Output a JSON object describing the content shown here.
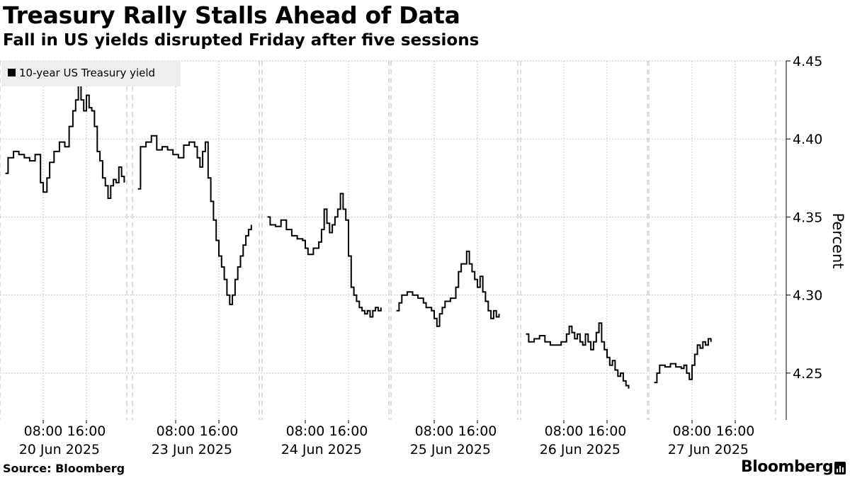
{
  "header": {
    "title": "Treasury Rally Stalls Ahead of Data",
    "subtitle": "Fall in US yields disrupted Friday after five sessions"
  },
  "footer": {
    "source": "Source: Bloomberg",
    "brand": "Bloomberg"
  },
  "colors": {
    "line": "#000000",
    "grid": "#c8c8c8",
    "legend_bg": "#eeeeee"
  },
  "chart_data": {
    "type": "line",
    "title": "Treasury Rally Stalls Ahead of Data",
    "subtitle": "Fall in US yields disrupted Friday after five sessions",
    "ylabel": "Percent",
    "ylim": [
      4.22,
      4.45
    ],
    "yticks": [
      4.25,
      4.3,
      4.35,
      4.4,
      4.45
    ],
    "ytick_labels": [
      "4.25",
      "4.30",
      "4.35",
      "4.40",
      "4.45"
    ],
    "grid": true,
    "legend_position": "top-left",
    "x_hours_per_day": [
      0,
      24
    ],
    "days": [
      {
        "date_label": "20 Jun 2025",
        "time_labels": [
          "08:00",
          "16:00"
        ]
      },
      {
        "date_label": "23 Jun 2025",
        "time_labels": [
          "08:00",
          "16:00"
        ]
      },
      {
        "date_label": "24 Jun 2025",
        "time_labels": [
          "08:00",
          "16:00"
        ]
      },
      {
        "date_label": "25 Jun 2025",
        "time_labels": [
          "08:00",
          "16:00"
        ]
      },
      {
        "date_label": "26 Jun 2025",
        "time_labels": [
          "08:00",
          "16:00"
        ]
      },
      {
        "date_label": "27 Jun 2025",
        "time_labels": [
          "08:00",
          "16:00"
        ]
      }
    ],
    "series": [
      {
        "name": "10-year US Treasury yield",
        "segments": [
          {
            "day": 0,
            "points": [
              [
                1.0,
                4.378
              ],
              [
                1.5,
                4.388
              ],
              [
                2.5,
                4.392
              ],
              [
                3.5,
                4.39
              ],
              [
                4.5,
                4.388
              ],
              [
                5.5,
                4.386
              ],
              [
                6.5,
                4.39
              ],
              [
                7.5,
                4.372
              ],
              [
                8.0,
                4.366
              ],
              [
                8.7,
                4.375
              ],
              [
                9.2,
                4.385
              ],
              [
                10.0,
                4.392
              ],
              [
                11.0,
                4.398
              ],
              [
                12.0,
                4.395
              ],
              [
                12.8,
                4.408
              ],
              [
                13.5,
                4.418
              ],
              [
                14.0,
                4.425
              ],
              [
                14.5,
                4.436
              ],
              [
                15.0,
                4.425
              ],
              [
                15.5,
                4.418
              ],
              [
                16.0,
                4.428
              ],
              [
                16.5,
                4.42
              ],
              [
                17.0,
                4.418
              ],
              [
                17.5,
                4.408
              ],
              [
                18.0,
                4.392
              ],
              [
                18.5,
                4.386
              ],
              [
                19.0,
                4.375
              ],
              [
                19.5,
                4.37
              ],
              [
                20.0,
                4.362
              ],
              [
                20.5,
                4.37
              ],
              [
                21.0,
                4.374
              ],
              [
                21.5,
                4.372
              ],
              [
                22.0,
                4.382
              ],
              [
                22.5,
                4.376
              ],
              [
                23.0,
                4.372
              ]
            ]
          },
          {
            "day": 1,
            "points": [
              [
                1.0,
                4.368
              ],
              [
                1.5,
                4.395
              ],
              [
                2.5,
                4.398
              ],
              [
                3.5,
                4.402
              ],
              [
                4.5,
                4.393
              ],
              [
                5.5,
                4.395
              ],
              [
                6.5,
                4.393
              ],
              [
                7.5,
                4.39
              ],
              [
                8.5,
                4.388
              ],
              [
                9.5,
                4.396
              ],
              [
                10.5,
                4.398
              ],
              [
                11.5,
                4.395
              ],
              [
                12.0,
                4.388
              ],
              [
                12.5,
                4.382
              ],
              [
                13.0,
                4.392
              ],
              [
                13.5,
                4.398
              ],
              [
                14.0,
                4.375
              ],
              [
                14.5,
                4.36
              ],
              [
                15.0,
                4.348
              ],
              [
                15.5,
                4.335
              ],
              [
                16.0,
                4.325
              ],
              [
                16.5,
                4.318
              ],
              [
                17.0,
                4.31
              ],
              [
                17.5,
                4.3
              ],
              [
                18.0,
                4.294
              ],
              [
                18.5,
                4.3
              ],
              [
                19.0,
                4.31
              ],
              [
                19.5,
                4.318
              ],
              [
                20.0,
                4.325
              ],
              [
                20.5,
                4.332
              ],
              [
                21.0,
                4.338
              ],
              [
                21.5,
                4.342
              ],
              [
                22.0,
                4.345
              ]
            ]
          },
          {
            "day": 2,
            "points": [
              [
                1.0,
                4.35
              ],
              [
                1.5,
                4.345
              ],
              [
                2.5,
                4.344
              ],
              [
                3.5,
                4.348
              ],
              [
                4.5,
                4.342
              ],
              [
                5.5,
                4.338
              ],
              [
                6.5,
                4.336
              ],
              [
                7.5,
                4.335
              ],
              [
                8.0,
                4.33
              ],
              [
                8.5,
                4.326
              ],
              [
                9.5,
                4.33
              ],
              [
                10.5,
                4.334
              ],
              [
                11.0,
                4.342
              ],
              [
                11.5,
                4.355
              ],
              [
                12.0,
                4.346
              ],
              [
                12.5,
                4.34
              ],
              [
                13.0,
                4.345
              ],
              [
                13.5,
                4.35
              ],
              [
                14.0,
                4.355
              ],
              [
                14.5,
                4.365
              ],
              [
                15.0,
                4.355
              ],
              [
                15.5,
                4.348
              ],
              [
                16.0,
                4.325
              ],
              [
                16.5,
                4.305
              ],
              [
                17.0,
                4.3
              ],
              [
                17.5,
                4.296
              ],
              [
                18.0,
                4.292
              ],
              [
                18.5,
                4.29
              ],
              [
                19.0,
                4.288
              ],
              [
                19.5,
                4.29
              ],
              [
                20.0,
                4.286
              ],
              [
                20.5,
                4.29
              ],
              [
                21.0,
                4.292
              ],
              [
                21.5,
                4.29
              ],
              [
                22.0,
                4.292
              ]
            ]
          },
          {
            "day": 3,
            "points": [
              [
                1.0,
                4.29
              ],
              [
                1.5,
                4.295
              ],
              [
                2.0,
                4.3
              ],
              [
                3.0,
                4.302
              ],
              [
                4.0,
                4.3
              ],
              [
                5.0,
                4.298
              ],
              [
                6.0,
                4.295
              ],
              [
                6.5,
                4.292
              ],
              [
                7.5,
                4.29
              ],
              [
                8.0,
                4.285
              ],
              [
                8.5,
                4.28
              ],
              [
                9.0,
                4.288
              ],
              [
                9.5,
                4.292
              ],
              [
                10.0,
                4.296
              ],
              [
                11.0,
                4.298
              ],
              [
                12.0,
                4.305
              ],
              [
                12.5,
                4.315
              ],
              [
                13.0,
                4.32
              ],
              [
                14.0,
                4.328
              ],
              [
                14.5,
                4.32
              ],
              [
                15.0,
                4.315
              ],
              [
                15.5,
                4.31
              ],
              [
                16.0,
                4.305
              ],
              [
                16.5,
                4.312
              ],
              [
                17.0,
                4.302
              ],
              [
                17.5,
                4.296
              ],
              [
                18.0,
                4.29
              ],
              [
                18.5,
                4.285
              ],
              [
                19.0,
                4.29
              ],
              [
                19.5,
                4.286
              ],
              [
                20.0,
                4.288
              ]
            ]
          },
          {
            "day": 4,
            "points": [
              [
                1.0,
                4.275
              ],
              [
                1.5,
                4.27
              ],
              [
                2.5,
                4.272
              ],
              [
                3.5,
                4.274
              ],
              [
                4.5,
                4.27
              ],
              [
                5.5,
                4.268
              ],
              [
                6.5,
                4.268
              ],
              [
                7.5,
                4.27
              ],
              [
                8.5,
                4.275
              ],
              [
                9.0,
                4.28
              ],
              [
                9.5,
                4.276
              ],
              [
                10.0,
                4.272
              ],
              [
                10.5,
                4.275
              ],
              [
                11.0,
                4.27
              ],
              [
                11.5,
                4.268
              ],
              [
                12.0,
                4.275
              ],
              [
                12.5,
                4.27
              ],
              [
                13.0,
                4.265
              ],
              [
                13.5,
                4.27
              ],
              [
                14.0,
                4.276
              ],
              [
                14.5,
                4.282
              ],
              [
                15.0,
                4.27
              ],
              [
                15.5,
                4.265
              ],
              [
                16.0,
                4.26
              ],
              [
                16.5,
                4.255
              ],
              [
                17.0,
                4.258
              ],
              [
                17.5,
                4.252
              ],
              [
                18.0,
                4.248
              ],
              [
                18.5,
                4.25
              ],
              [
                19.0,
                4.245
              ],
              [
                19.5,
                4.242
              ],
              [
                20.0,
                4.24
              ]
            ]
          },
          {
            "day": 5,
            "points": [
              [
                1.0,
                4.244
              ],
              [
                1.5,
                4.25
              ],
              [
                2.0,
                4.255
              ],
              [
                3.0,
                4.254
              ],
              [
                4.0,
                4.256
              ],
              [
                5.0,
                4.254
              ],
              [
                6.0,
                4.253
              ],
              [
                6.5,
                4.255
              ],
              [
                7.0,
                4.25
              ],
              [
                7.5,
                4.246
              ],
              [
                8.0,
                4.255
              ],
              [
                8.5,
                4.262
              ],
              [
                9.0,
                4.268
              ],
              [
                9.5,
                4.266
              ],
              [
                10.0,
                4.27
              ],
              [
                10.5,
                4.268
              ],
              [
                11.0,
                4.272
              ],
              [
                11.5,
                4.27
              ]
            ]
          }
        ]
      }
    ]
  }
}
